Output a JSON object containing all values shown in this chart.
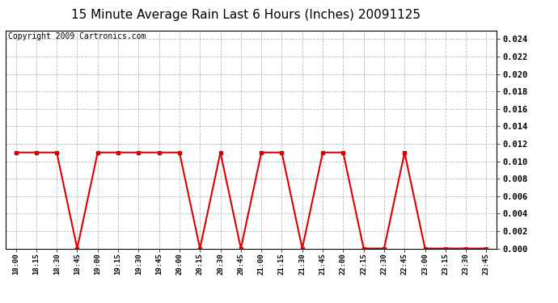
{
  "title": "15 Minute Average Rain Last 6 Hours (Inches) 20091125",
  "copyright": "Copyright 2009 Cartronics.com",
  "x_labels": [
    "18:00",
    "18:15",
    "18:30",
    "18:45",
    "19:00",
    "19:15",
    "19:30",
    "19:45",
    "20:00",
    "20:15",
    "20:30",
    "20:45",
    "21:00",
    "21:15",
    "21:30",
    "21:45",
    "22:00",
    "22:15",
    "22:30",
    "22:45",
    "23:00",
    "23:15",
    "23:30",
    "23:45"
  ],
  "y_values": [
    0.011,
    0.011,
    0.011,
    0.0,
    0.011,
    0.011,
    0.011,
    0.011,
    0.011,
    0.0,
    0.011,
    0.0,
    0.011,
    0.011,
    0.0,
    0.011,
    0.011,
    0.0,
    0.0,
    0.011,
    0.0,
    0.0,
    0.0,
    0.0
  ],
  "line_color": "#dd0000",
  "marker_color": "#dd0000",
  "bg_color": "#ffffff",
  "plot_bg_color": "#ffffff",
  "grid_color": "#aaaaaa",
  "ylim": [
    0,
    0.025
  ],
  "yticks": [
    0.0,
    0.002,
    0.004,
    0.006,
    0.008,
    0.01,
    0.012,
    0.014,
    0.016,
    0.018,
    0.02,
    0.022,
    0.024
  ],
  "title_fontsize": 11,
  "copyright_fontsize": 7
}
